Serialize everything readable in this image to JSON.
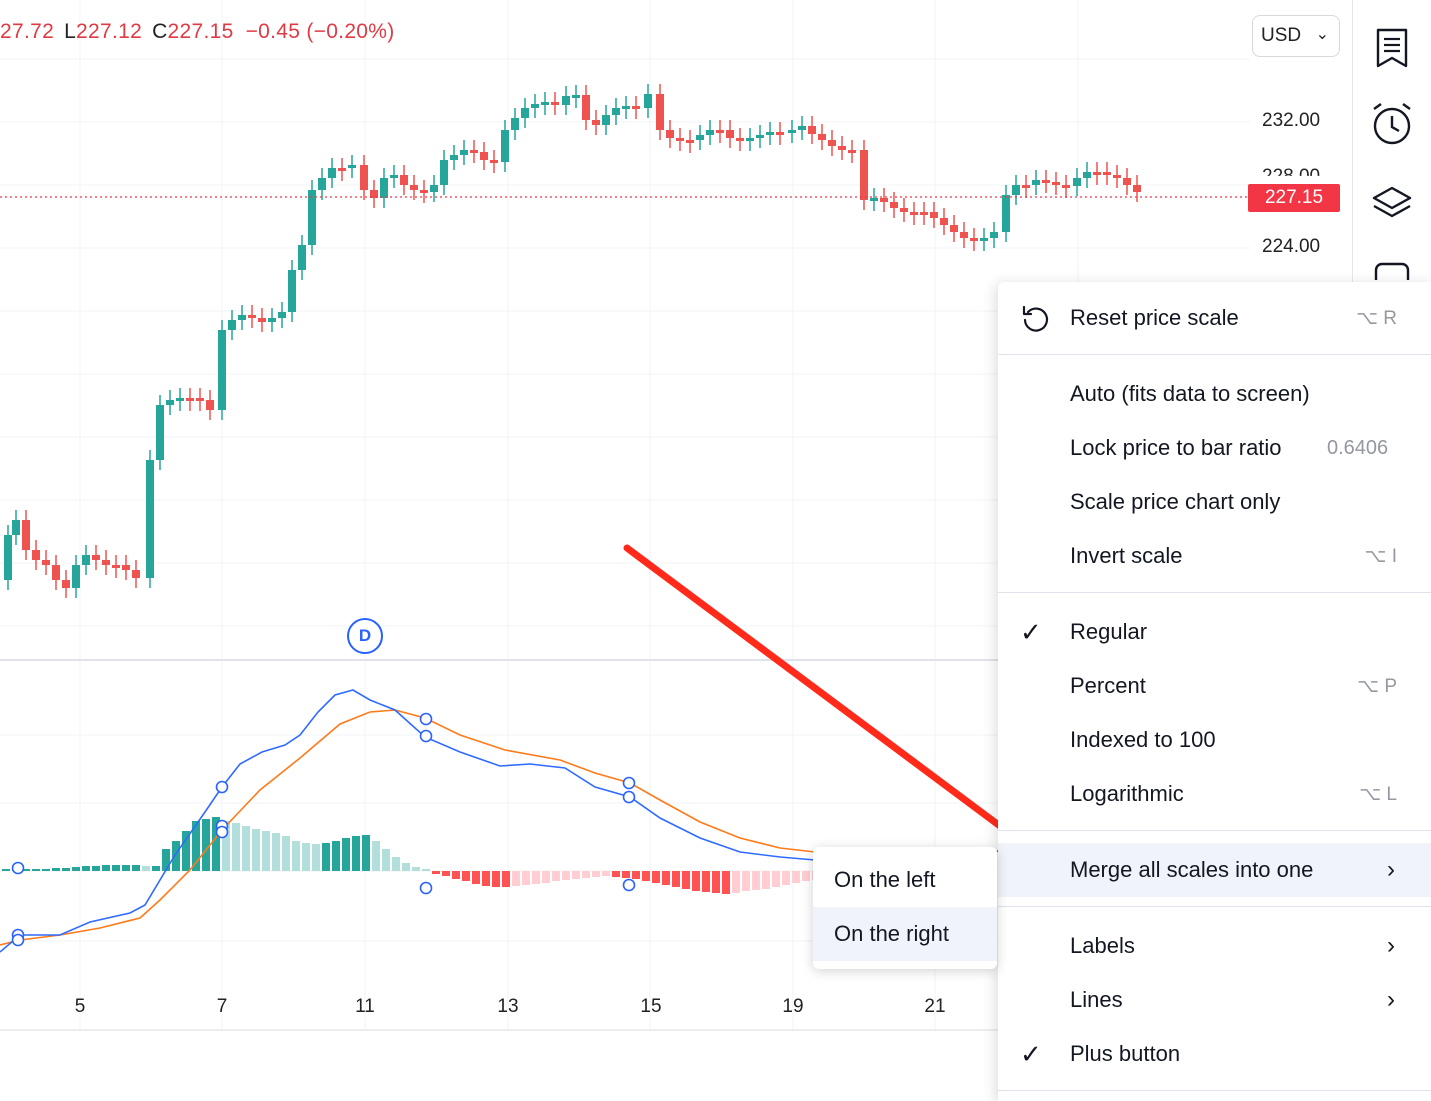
{
  "legend": {
    "h_value": "27.72",
    "l_key": "L",
    "l_value": "227.12",
    "c_key": "C",
    "c_value": "227.15",
    "change": "−0.45 (−0.20%)"
  },
  "currency": {
    "label": "USD",
    "chevron": "⌄"
  },
  "price_scale": {
    "ticks": [
      {
        "label": "232.00",
        "price": 232
      },
      {
        "label": "228.00",
        "price": 228
      },
      {
        "label": "224.00",
        "price": 224
      }
    ],
    "current_price": "227.15"
  },
  "x_axis": {
    "labels": [
      "5",
      "7",
      "11",
      "13",
      "15",
      "19",
      "21"
    ]
  },
  "dividend_marker": "D",
  "sidebar": {
    "icons": [
      "watchlist-icon",
      "alarm-clock-icon",
      "layers-icon",
      "chat-icon"
    ]
  },
  "context_menu": {
    "reset": {
      "label": "Reset price scale",
      "shortcut": "⌥ R"
    },
    "auto": {
      "label": "Auto (fits data to screen)"
    },
    "lock": {
      "label": "Lock price to bar ratio",
      "value": "0.6406"
    },
    "scale_only": {
      "label": "Scale price chart only"
    },
    "invert": {
      "label": "Invert scale",
      "shortcut": "⌥ I"
    },
    "regular": {
      "label": "Regular",
      "checked": true
    },
    "percent": {
      "label": "Percent",
      "shortcut": "⌥ P"
    },
    "indexed": {
      "label": "Indexed to 100"
    },
    "log": {
      "label": "Logarithmic",
      "shortcut": "⌥ L"
    },
    "merge": {
      "label": "Merge all scales into one",
      "arrow": "›"
    },
    "labels": {
      "label": "Labels",
      "arrow": "›"
    },
    "lines": {
      "label": "Lines",
      "arrow": "›"
    },
    "plus": {
      "label": "Plus button",
      "checked": true
    },
    "check_glyph": "✓"
  },
  "submenu": {
    "left": "On the left",
    "right": "On the right"
  },
  "colors": {
    "up": "#26a69a",
    "down": "#ef5350",
    "macd": "#2962ff",
    "signal": "#ff6d00",
    "annotation_arrow": "#ff2a1a"
  },
  "chart_data": {
    "type": "candlestick",
    "price_axis_ticks": [
      232.0,
      228.0,
      224.0
    ],
    "last_price": 227.15,
    "low": 227.12,
    "change": -0.45,
    "change_pct": -0.2,
    "x_tick_labels": [
      "5",
      "7",
      "11",
      "13",
      "15",
      "19",
      "21"
    ],
    "indicator": {
      "type": "macd",
      "series": [
        "macd",
        "signal",
        "histogram"
      ]
    }
  }
}
